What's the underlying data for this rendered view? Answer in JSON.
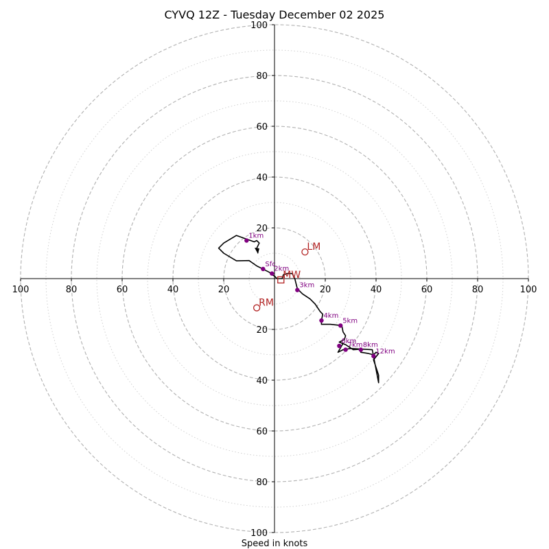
{
  "chart_data": {
    "type": "hodograph",
    "title": "CYVQ 12Z - Tuesday December 02 2025",
    "xlabel": "Speed in knots",
    "ylabel": "",
    "xlim": [
      -100,
      100
    ],
    "ylim": [
      -100,
      100
    ],
    "rings_major": [
      20,
      40,
      60,
      80,
      100
    ],
    "rings_minor": [
      10,
      30,
      50,
      70,
      90
    ],
    "tick_values": [
      100,
      80,
      60,
      40,
      20
    ],
    "x_tick_labels": [
      "100",
      "80",
      "60",
      "40",
      "20",
      "20",
      "40",
      "60",
      "80",
      "100"
    ],
    "y_tick_labels": [
      "100",
      "80",
      "60",
      "40",
      "20",
      "20",
      "40",
      "60",
      "80",
      "100"
    ],
    "colors": {
      "trace": "#000000",
      "markers": "#800080",
      "points": "#b22222",
      "rings": "#b0b0b0"
    },
    "trace": [
      [
        -6.5,
        10
      ],
      [
        -7,
        12
      ],
      [
        -6,
        14
      ],
      [
        -7,
        15
      ],
      [
        -8,
        14.5
      ],
      [
        -15,
        17
      ],
      [
        -20,
        14
      ],
      [
        -22,
        12
      ],
      [
        -20,
        10
      ],
      [
        -15,
        7
      ],
      [
        -10,
        7.1
      ],
      [
        -7,
        5
      ],
      [
        -5,
        4
      ],
      [
        -2,
        2.5
      ],
      [
        -1,
        1.5
      ],
      [
        0,
        1
      ],
      [
        1,
        0
      ],
      [
        3,
        0
      ],
      [
        3.5,
        1.5
      ],
      [
        5,
        2
      ],
      [
        7,
        2
      ],
      [
        8,
        0
      ],
      [
        9,
        -4
      ],
      [
        11,
        -6
      ],
      [
        14,
        -8
      ],
      [
        16,
        -10
      ],
      [
        18,
        -13
      ],
      [
        19,
        -14
      ],
      [
        18.5,
        -16.5
      ],
      [
        18.5,
        -18
      ],
      [
        22,
        -18
      ],
      [
        26.5,
        -18.5
      ],
      [
        27,
        -21
      ],
      [
        28,
        -22.5
      ],
      [
        27.5,
        -24
      ],
      [
        25.5,
        -25
      ],
      [
        28,
        -26
      ],
      [
        31,
        -28
      ],
      [
        33.5,
        -27.8
      ],
      [
        34,
        -29
      ],
      [
        37,
        -29.5
      ],
      [
        39,
        -30
      ],
      [
        40,
        -29
      ],
      [
        41,
        -29.5
      ],
      [
        39,
        -32
      ],
      [
        40,
        -35
      ],
      [
        41,
        -38
      ],
      [
        41,
        -41
      ],
      [
        38.5,
        -28
      ],
      [
        30,
        -27.5
      ],
      [
        27,
        -28
      ],
      [
        25,
        -29
      ],
      [
        27,
        -25.5
      ]
    ],
    "height_markers": [
      {
        "label": "Sfc",
        "u": -4.5,
        "v": 3.8
      },
      {
        "label": "1km",
        "u": -11,
        "v": 15
      },
      {
        "label": "2km",
        "u": -1,
        "v": 2
      },
      {
        "label": "3km",
        "u": 9,
        "v": -4.5
      },
      {
        "label": "4km",
        "u": 18.5,
        "v": -16.5
      },
      {
        "label": "5km",
        "u": 26,
        "v": -18.5
      },
      {
        "label": "6km",
        "u": 25.5,
        "v": -26.5
      },
      {
        "label": "7km",
        "u": 28,
        "v": -28
      },
      {
        "label": "8km",
        "u": 34,
        "v": -28
      },
      {
        "label": "12km",
        "u": 39,
        "v": -30.5
      }
    ],
    "storm_motion": [
      {
        "label": "LM",
        "u": 12,
        "v": 10.5,
        "symbol": "circle"
      },
      {
        "label": "RM",
        "u": -7,
        "v": -11.5,
        "symbol": "circle"
      },
      {
        "label": "MW",
        "u": 2.5,
        "v": -0.5,
        "symbol": "square"
      }
    ]
  }
}
